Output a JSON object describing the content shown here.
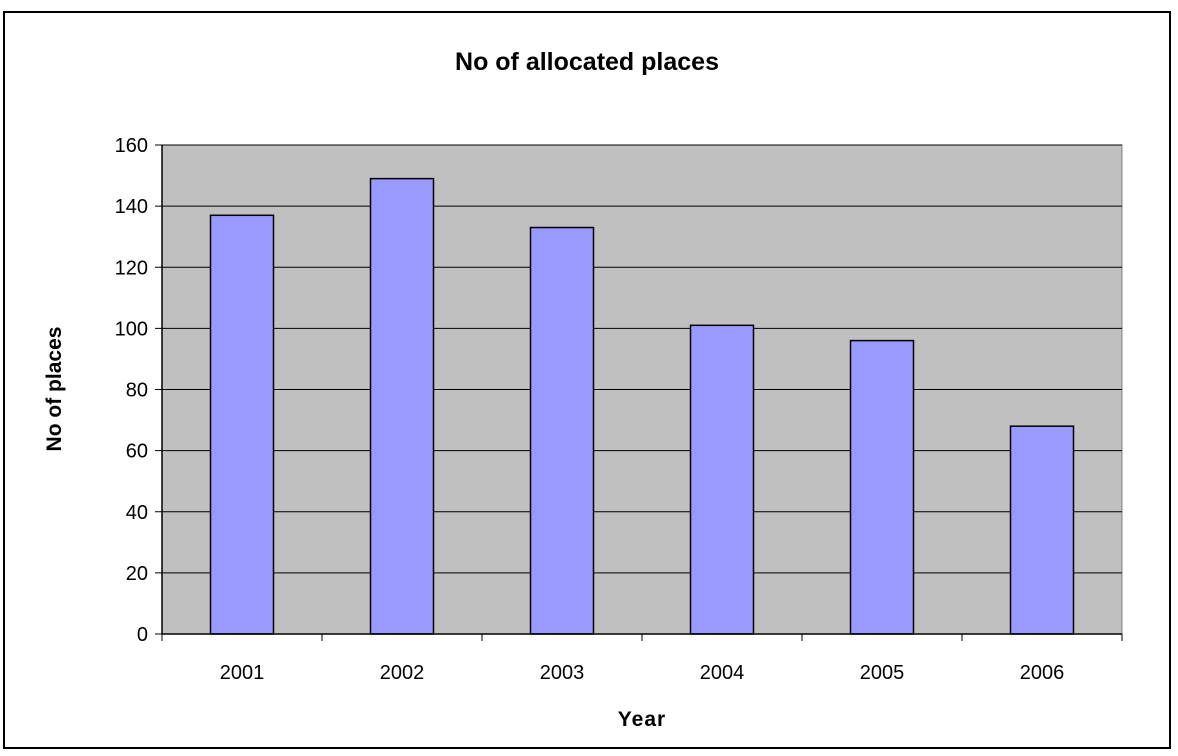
{
  "chart_data": {
    "type": "bar",
    "title": "No of allocated places",
    "xlabel": "Year",
    "ylabel": "No of places",
    "categories": [
      "2001",
      "2002",
      "2003",
      "2004",
      "2005",
      "2006"
    ],
    "values": [
      137,
      149,
      133,
      101,
      96,
      68
    ],
    "ylim": [
      0,
      160
    ],
    "yticks": [
      0,
      20,
      40,
      60,
      80,
      100,
      120,
      140,
      160
    ],
    "grid": true,
    "legend": "none",
    "colors": {
      "bar_fill": "#9999ff",
      "plot_background": "#c0c0c0",
      "gridline": "#000000",
      "frame": "#000000"
    }
  }
}
